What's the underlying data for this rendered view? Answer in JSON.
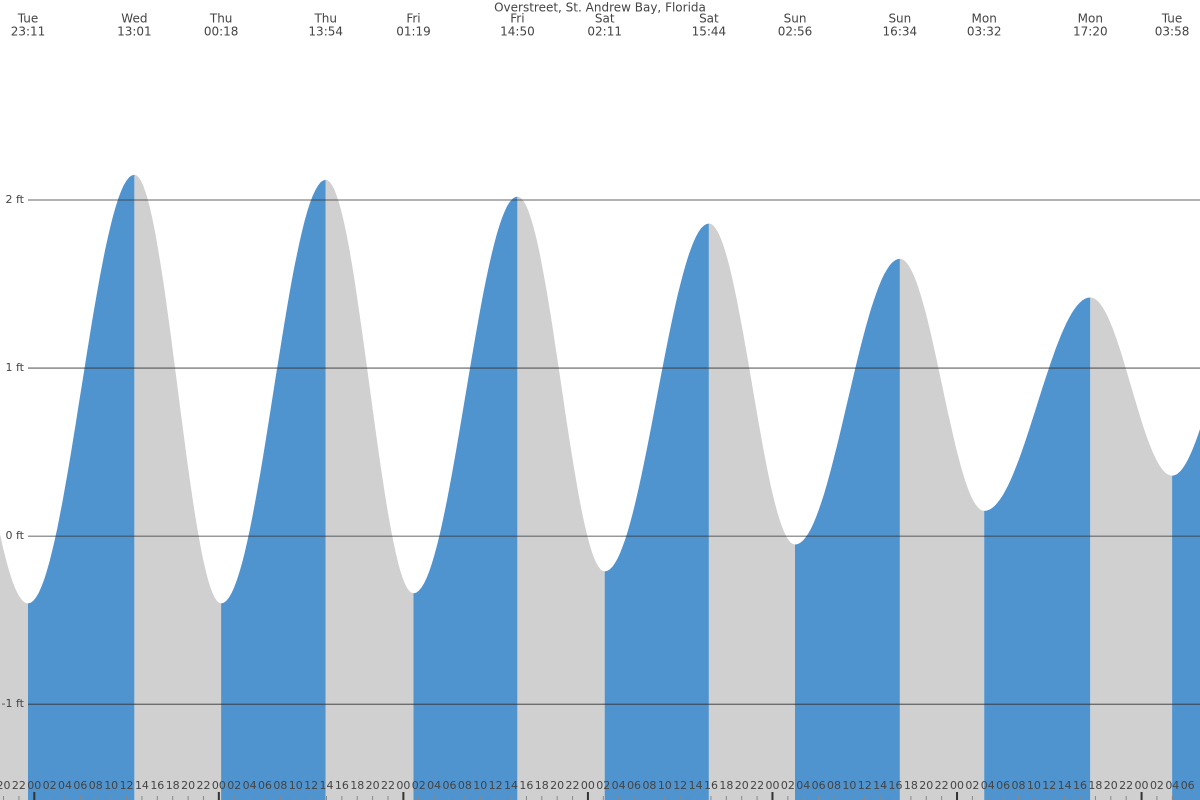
{
  "chart_data": {
    "type": "area",
    "title": "Overstreet, St. Andrew Bay, Florida",
    "days": [
      "Tue",
      "Wed",
      "Thu",
      "Thu",
      "Fri",
      "Fri",
      "Sat",
      "Sat",
      "Sun",
      "Sun",
      "Mon",
      "Mon",
      "Tue"
    ],
    "times": [
      "23:11",
      "13:01",
      "00:18",
      "13:54",
      "01:19",
      "14:50",
      "02:11",
      "15:44",
      "02:56",
      "16:34",
      "03:32",
      "17:20",
      "03:58"
    ],
    "values": [
      -0.4,
      2.15,
      -0.4,
      2.12,
      -0.34,
      2.02,
      -0.21,
      1.86,
      -0.05,
      1.65,
      0.15,
      1.42,
      0.36
    ],
    "rising_color": "#4f93cf",
    "falling_color": "#d0d0d0",
    "ylim": [
      -1.57,
      3.19
    ],
    "yticks": [
      {
        "value": -1,
        "label": "-1 ft"
      },
      {
        "value": 0,
        "label": "0 ft"
      },
      {
        "value": 1,
        "label": "1 ft"
      },
      {
        "value": 2,
        "label": "2 ft"
      }
    ],
    "grid": true,
    "xlim": [
      19.54,
      175.6
    ],
    "xticks": [
      {
        "value": 20,
        "label": "20"
      },
      {
        "value": 22,
        "label": "22"
      },
      {
        "value": 24,
        "label": "00"
      },
      {
        "value": 26,
        "label": "02"
      },
      {
        "value": 28,
        "label": "04"
      },
      {
        "value": 30,
        "label": "06"
      },
      {
        "value": 32,
        "label": "08"
      },
      {
        "value": 34,
        "label": "10"
      },
      {
        "value": 36,
        "label": "12"
      },
      {
        "value": 38,
        "label": "14"
      },
      {
        "value": 40,
        "label": "16"
      },
      {
        "value": 42,
        "label": "18"
      },
      {
        "value": 44,
        "label": "20"
      },
      {
        "value": 46,
        "label": "22"
      },
      {
        "value": 48,
        "label": "00"
      },
      {
        "value": 50,
        "label": "02"
      },
      {
        "value": 52,
        "label": "04"
      },
      {
        "value": 54,
        "label": "06"
      },
      {
        "value": 56,
        "label": "08"
      },
      {
        "value": 58,
        "label": "10"
      },
      {
        "value": 60,
        "label": "12"
      },
      {
        "value": 62,
        "label": "14"
      },
      {
        "value": 64,
        "label": "16"
      },
      {
        "value": 66,
        "label": "18"
      },
      {
        "value": 68,
        "label": "20"
      },
      {
        "value": 70,
        "label": "22"
      },
      {
        "value": 72,
        "label": "00"
      },
      {
        "value": 74,
        "label": "02"
      },
      {
        "value": 76,
        "label": "04"
      },
      {
        "value": 78,
        "label": "06"
      },
      {
        "value": 80,
        "label": "08"
      },
      {
        "value": 82,
        "label": "10"
      },
      {
        "value": 84,
        "label": "12"
      },
      {
        "value": 86,
        "label": "14"
      },
      {
        "value": 88,
        "label": "16"
      },
      {
        "value": 90,
        "label": "18"
      },
      {
        "value": 92,
        "label": "20"
      },
      {
        "value": 94,
        "label": "22"
      },
      {
        "value": 96,
        "label": "00"
      },
      {
        "value": 98,
        "label": "02"
      },
      {
        "value": 100,
        "label": "04"
      },
      {
        "value": 102,
        "label": "06"
      },
      {
        "value": 104,
        "label": "08"
      },
      {
        "value": 106,
        "label": "10"
      },
      {
        "value": 108,
        "label": "12"
      },
      {
        "value": 110,
        "label": "14"
      },
      {
        "value": 112,
        "label": "16"
      },
      {
        "value": 114,
        "label": "18"
      },
      {
        "value": 116,
        "label": "20"
      },
      {
        "value": 118,
        "label": "22"
      },
      {
        "value": 120,
        "label": "00"
      },
      {
        "value": 122,
        "label": "02"
      },
      {
        "value": 124,
        "label": "04"
      },
      {
        "value": 126,
        "label": "06"
      },
      {
        "value": 128,
        "label": "08"
      },
      {
        "value": 130,
        "label": "10"
      },
      {
        "value": 132,
        "label": "12"
      },
      {
        "value": 134,
        "label": "14"
      },
      {
        "value": 136,
        "label": "16"
      },
      {
        "value": 138,
        "label": "18"
      },
      {
        "value": 140,
        "label": "20"
      },
      {
        "value": 142,
        "label": "22"
      },
      {
        "value": 144,
        "label": "00"
      },
      {
        "value": 146,
        "label": "02"
      },
      {
        "value": 148,
        "label": "04"
      },
      {
        "value": 150,
        "label": "06"
      },
      {
        "value": 152,
        "label": "08"
      },
      {
        "value": 154,
        "label": "10"
      },
      {
        "value": 156,
        "label": "12"
      },
      {
        "value": 158,
        "label": "14"
      },
      {
        "value": 160,
        "label": "16"
      },
      {
        "value": 162,
        "label": "18"
      },
      {
        "value": 164,
        "label": "20"
      },
      {
        "value": 166,
        "label": "22"
      },
      {
        "value": 168,
        "label": "00"
      },
      {
        "value": 170,
        "label": "02"
      },
      {
        "value": 172,
        "label": "04"
      },
      {
        "value": 174,
        "label": "06"
      }
    ]
  }
}
